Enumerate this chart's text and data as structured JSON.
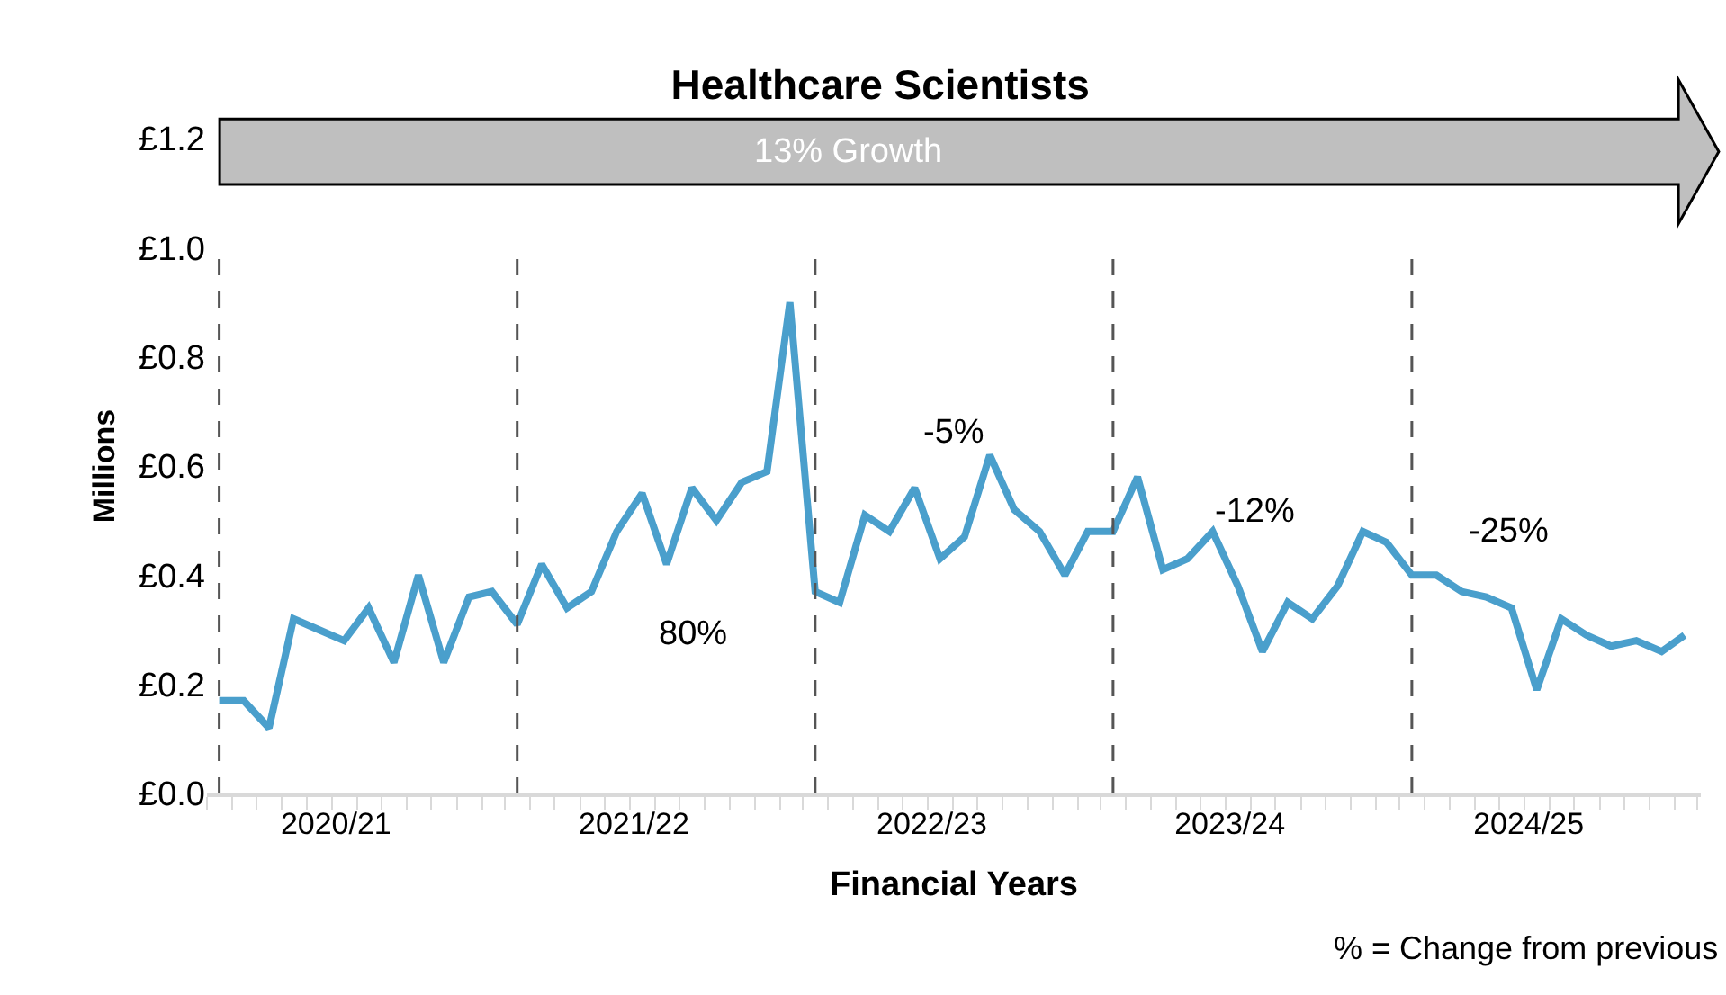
{
  "chart_data": {
    "type": "line",
    "title": "Healthcare Scientists",
    "xlabel": "Financial Years",
    "ylabel": "Millions",
    "x": [
      "2020-04-01",
      "2020-05-01",
      "2020-06-01",
      "2020-07-01",
      "2020-08-01",
      "2020-09-01",
      "2020-10-01",
      "2020-11-01",
      "2020-12-01",
      "2021-01-01",
      "2021-02-01",
      "2021-03-01",
      "2021-04-01",
      "2021-05-01",
      "2021-06-01",
      "2021-07-01",
      "2021-08-01",
      "2021-09-01",
      "2021-10-01",
      "2021-11-01",
      "2021-12-01",
      "2022-01-01",
      "2022-02-01",
      "2022-03-01",
      "2022-04-01",
      "2022-05-01",
      "2022-06-01",
      "2022-07-01",
      "2022-08-01",
      "2022-09-01",
      "2022-10-01",
      "2022-11-01",
      "2022-12-01",
      "2023-01-01",
      "2023-02-01",
      "2023-03-01",
      "2023-04-01",
      "2023-05-01",
      "2023-06-01",
      "2023-07-01",
      "2023-08-01",
      "2023-09-01",
      "2023-10-01",
      "2023-11-01",
      "2023-12-01",
      "2024-01-01",
      "2024-02-01",
      "2024-03-01",
      "2024-04-01",
      "2024-05-01",
      "2024-06-01",
      "2024-07-01",
      "2024-08-01",
      "2024-09-01",
      "2024-10-01",
      "2024-11-01",
      "2024-12-01",
      "2025-01-01",
      "2025-02-01",
      "2025-03-01"
    ],
    "series": [
      {
        "color": "#4a9fcc",
        "values": [
          0.17,
          0.17,
          0.12,
          0.32,
          0.3,
          0.28,
          0.34,
          0.24,
          0.4,
          0.24,
          0.36,
          0.37,
          0.31,
          0.42,
          0.34,
          0.37,
          0.48,
          0.55,
          0.42,
          0.56,
          0.5,
          0.57,
          0.59,
          0.9,
          0.37,
          0.35,
          0.51,
          0.48,
          0.56,
          0.43,
          0.47,
          0.62,
          0.52,
          0.48,
          0.4,
          0.48,
          0.48,
          0.58,
          0.41,
          0.43,
          0.48,
          0.38,
          0.26,
          0.35,
          0.32,
          0.38,
          0.48,
          0.46,
          0.4,
          0.4,
          0.37,
          0.36,
          0.34,
          0.19,
          0.32,
          0.29,
          0.27,
          0.28,
          0.26,
          0.29
        ]
      }
    ],
    "xlim": [
      "2020-03-17",
      "2025-03-21"
    ],
    "xticks": [
      {
        "value": "2020-08-22",
        "label": "2020/21"
      },
      {
        "value": "2021-08-22",
        "label": "2021/22"
      },
      {
        "value": "2022-08-22",
        "label": "2022/23"
      },
      {
        "value": "2023-08-22",
        "label": "2023/24"
      },
      {
        "value": "2024-08-22",
        "label": "2024/25"
      }
    ],
    "ylim": [
      0,
      1.2
    ],
    "yticks": [
      {
        "value": 0,
        "label": "£0.0"
      },
      {
        "value": 0.2,
        "label": "£0.2"
      },
      {
        "value": 0.4,
        "label": "£0.4"
      },
      {
        "value": 0.6,
        "label": "£0.6"
      },
      {
        "value": 0.8,
        "label": "£0.8"
      },
      {
        "value": 1.0,
        "label": "£1.0"
      },
      {
        "value": 1.2,
        "label": "£1.2"
      }
    ],
    "ref_lines": [
      {
        "axis": "x",
        "value": "2020-04-01",
        "color": "#555555",
        "line_style": "dashed"
      },
      {
        "axis": "x",
        "value": "2021-04-01",
        "color": "#555555",
        "line_style": "dashed"
      },
      {
        "axis": "x",
        "value": "2022-04-01",
        "color": "#555555",
        "line_style": "dashed"
      },
      {
        "axis": "x",
        "value": "2023-04-01",
        "color": "#555555",
        "line_style": "dashed"
      },
      {
        "axis": "x",
        "value": "2024-04-01",
        "color": "#555555",
        "line_style": "dashed"
      }
    ],
    "annotations": [
      "13% Growth",
      "80%",
      "-5%",
      "-12%",
      "-25%",
      "% = Change from previous"
    ],
    "legend": false,
    "marker": "none",
    "line_style": "solid"
  }
}
